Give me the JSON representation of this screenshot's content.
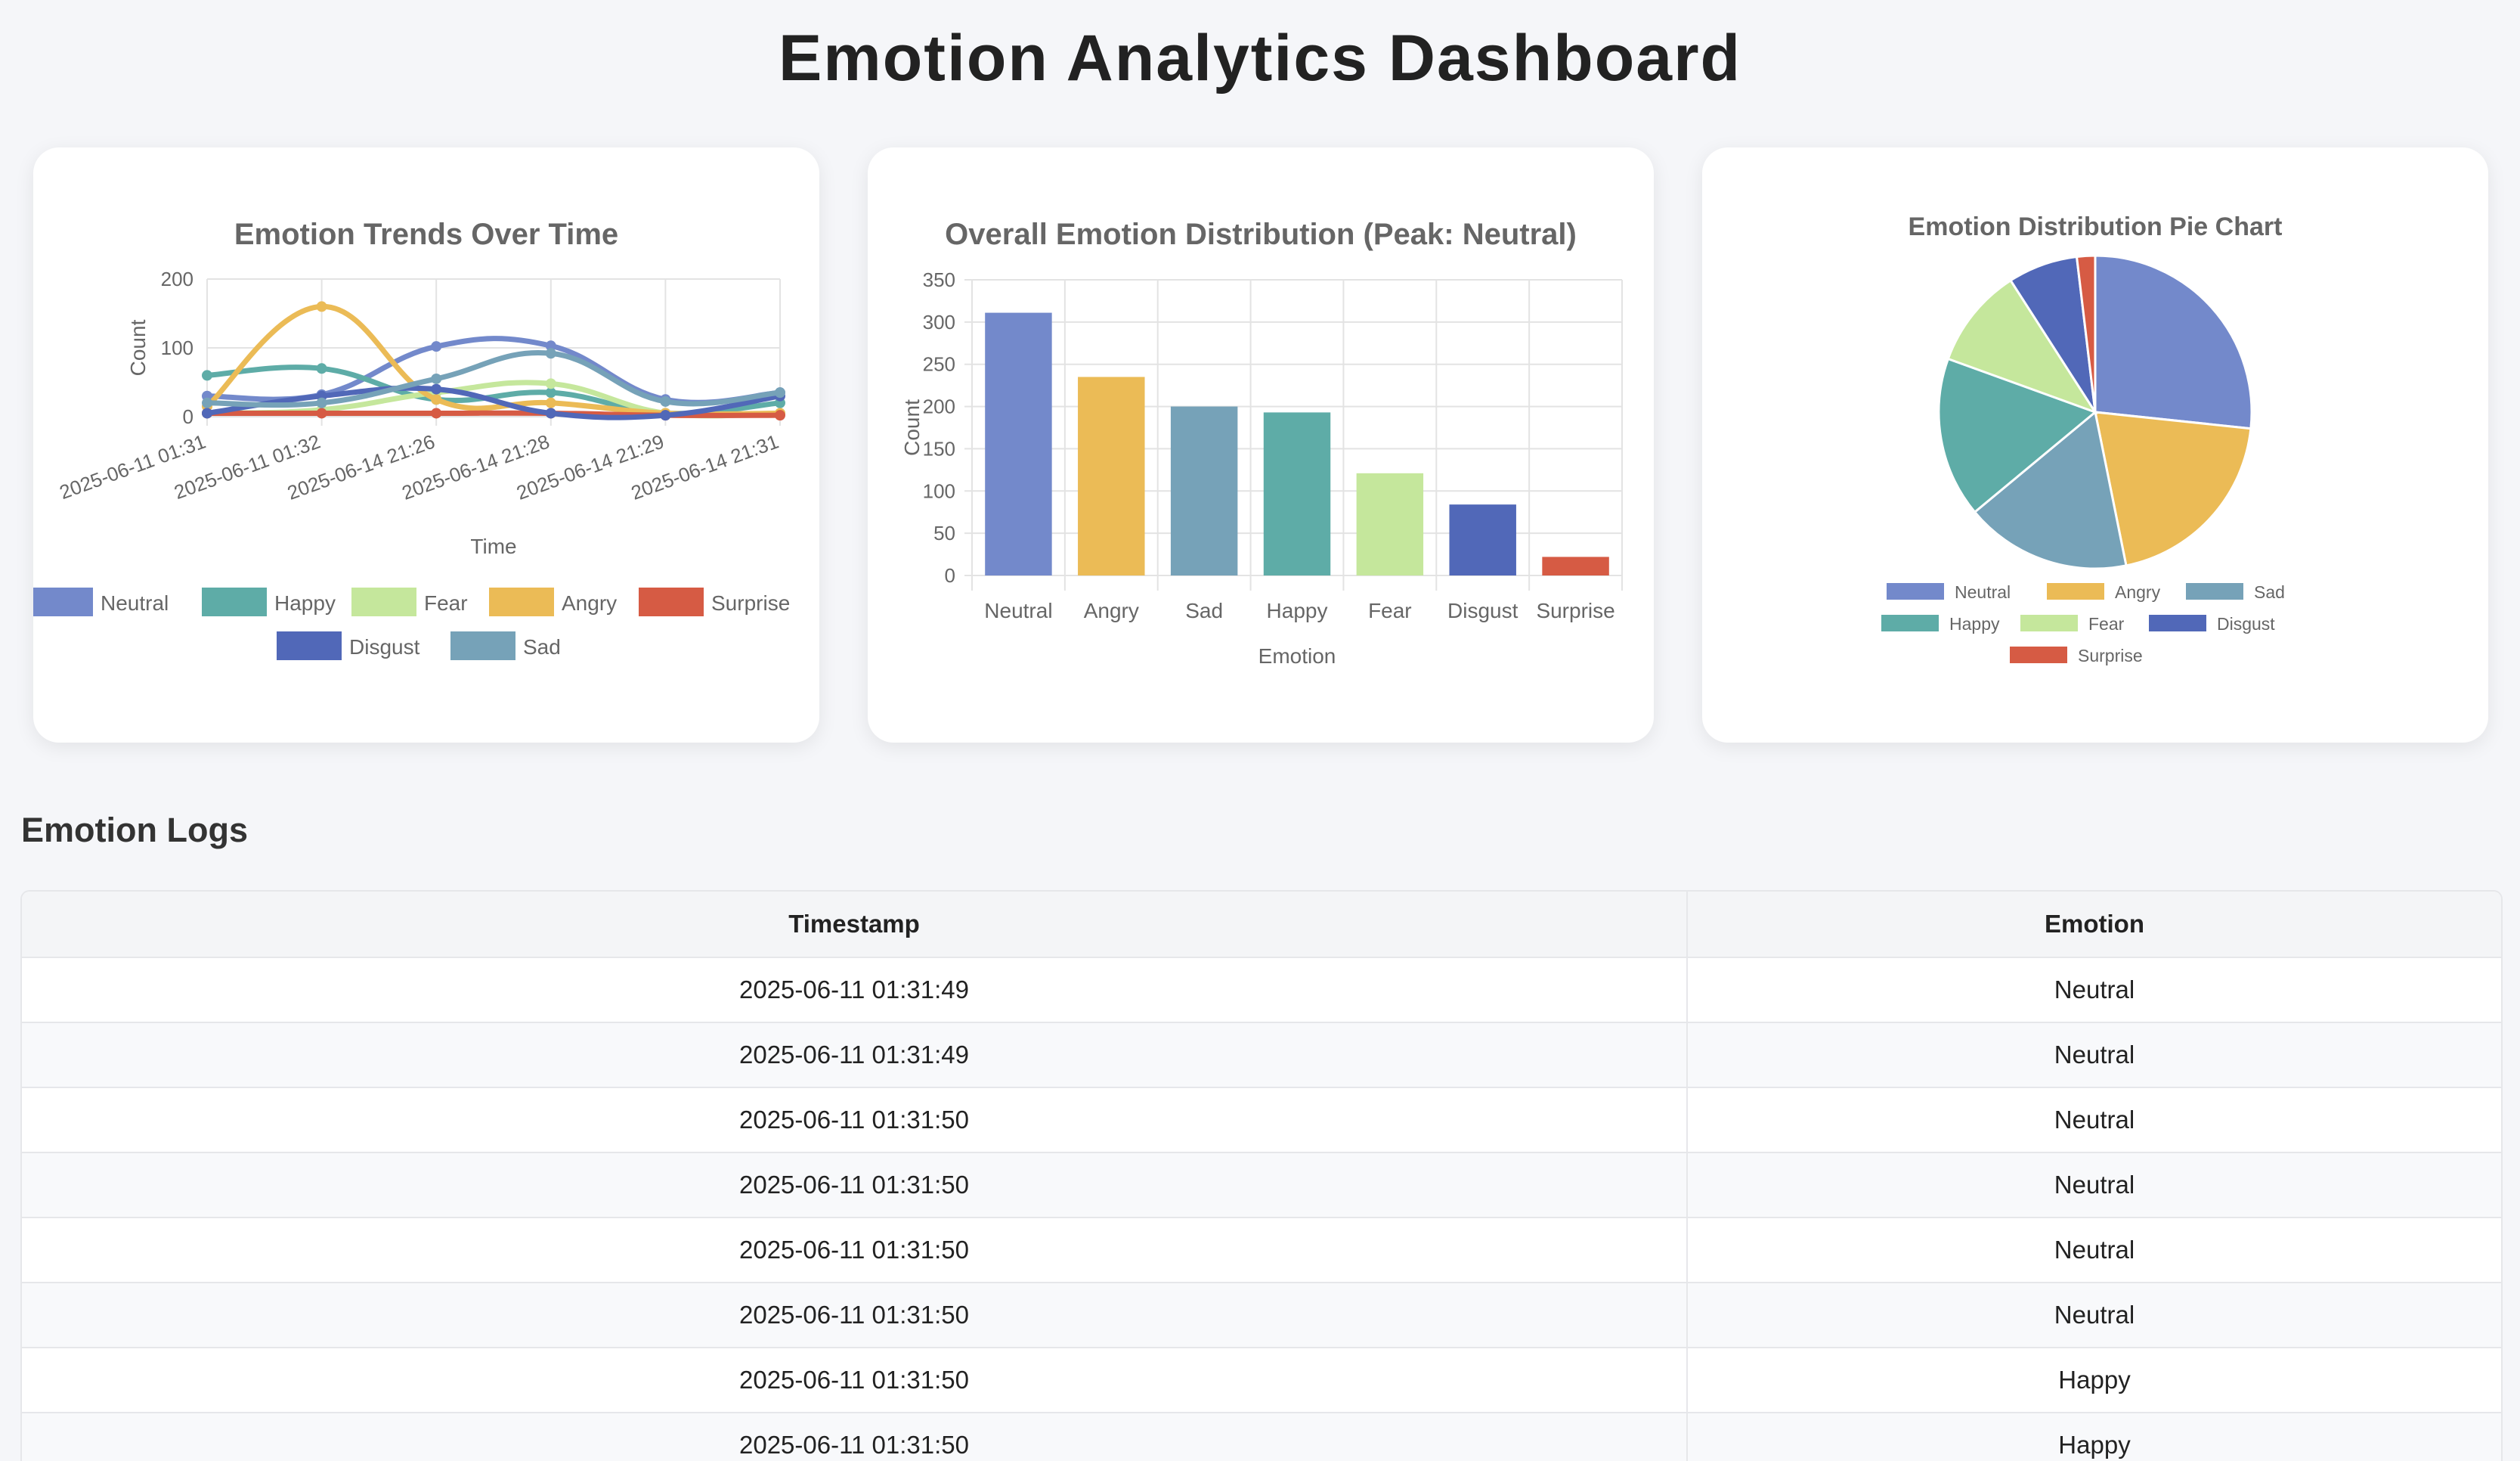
{
  "page": {
    "title": "Emotion Analytics Dashboard"
  },
  "colors": {
    "Neutral": "#7389cb",
    "Happy": "#5eaca7",
    "Fear": "#c5e79c",
    "Angry": "#ebbb56",
    "Surprise": "#d65b44",
    "Disgust": "#5168b8",
    "Sad": "#76a2b8"
  },
  "chart_data": [
    {
      "type": "line",
      "title": "Emotion Trends Over Time",
      "xlabel": "Time",
      "ylabel": "Count",
      "ylim": [
        0,
        200
      ],
      "yticks": [
        0,
        100,
        200
      ],
      "x": [
        "2025-06-11 01:31",
        "2025-06-11 01:32",
        "2025-06-14 21:26",
        "2025-06-14 21:28",
        "2025-06-14 21:29",
        "2025-06-14 21:31"
      ],
      "legend_position": "bottom",
      "grid": true,
      "series": [
        {
          "name": "Neutral",
          "values": [
            30,
            32,
            102,
            103,
            25,
            35
          ]
        },
        {
          "name": "Happy",
          "values": [
            60,
            70,
            25,
            35,
            5,
            20
          ]
        },
        {
          "name": "Fear",
          "values": [
            5,
            10,
            35,
            48,
            5,
            5
          ]
        },
        {
          "name": "Angry",
          "values": [
            15,
            160,
            25,
            20,
            5,
            5
          ]
        },
        {
          "name": "Surprise",
          "values": [
            5,
            5,
            5,
            5,
            2,
            2
          ]
        },
        {
          "name": "Disgust",
          "values": [
            5,
            30,
            40,
            5,
            2,
            30
          ]
        },
        {
          "name": "Sad",
          "values": [
            20,
            20,
            55,
            92,
            22,
            35
          ]
        }
      ]
    },
    {
      "type": "bar",
      "title": "Overall Emotion Distribution (Peak: Neutral)",
      "xlabel": "Emotion",
      "ylabel": "Count",
      "ylim": [
        0,
        350
      ],
      "yticks": [
        0,
        50,
        100,
        150,
        200,
        250,
        300,
        350
      ],
      "grid": true,
      "categories": [
        "Neutral",
        "Angry",
        "Sad",
        "Happy",
        "Fear",
        "Disgust",
        "Surprise"
      ],
      "values": [
        311,
        235,
        200,
        193,
        121,
        84,
        22
      ]
    },
    {
      "type": "pie",
      "title": "Emotion Distribution Pie Chart",
      "legend_position": "bottom",
      "labels": [
        "Neutral",
        "Angry",
        "Sad",
        "Happy",
        "Fear",
        "Disgust",
        "Surprise"
      ],
      "values": [
        311,
        235,
        200,
        193,
        121,
        84,
        22
      ]
    }
  ],
  "logs": {
    "title": "Emotion Logs",
    "columns": [
      "Timestamp",
      "Emotion"
    ],
    "rows": [
      [
        "2025-06-11 01:31:49",
        "Neutral"
      ],
      [
        "2025-06-11 01:31:49",
        "Neutral"
      ],
      [
        "2025-06-11 01:31:50",
        "Neutral"
      ],
      [
        "2025-06-11 01:31:50",
        "Neutral"
      ],
      [
        "2025-06-11 01:31:50",
        "Neutral"
      ],
      [
        "2025-06-11 01:31:50",
        "Neutral"
      ],
      [
        "2025-06-11 01:31:50",
        "Happy"
      ],
      [
        "2025-06-11 01:31:50",
        "Happy"
      ]
    ]
  }
}
